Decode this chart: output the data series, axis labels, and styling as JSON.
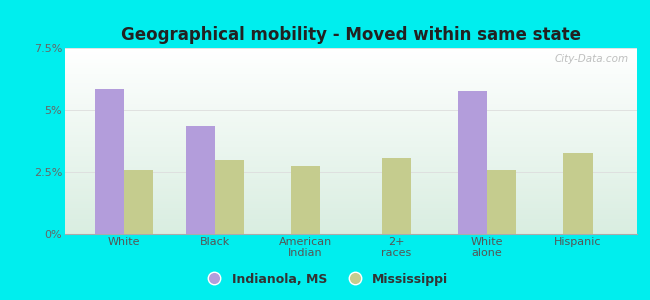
{
  "title": "Geographical mobility - Moved within same state",
  "categories": [
    "White",
    "Black",
    "American\nIndian",
    "2+\nraces",
    "White\nalone",
    "Hispanic"
  ],
  "indianola_values": [
    5.85,
    4.35,
    0,
    0,
    5.75,
    0
  ],
  "mississippi_values": [
    2.6,
    3.0,
    2.75,
    3.05,
    2.6,
    3.25
  ],
  "bar_color_indianola": "#b39ddb",
  "bar_color_mississippi": "#c5cc8e",
  "background_color": "#00eeee",
  "ylim": [
    0,
    7.5
  ],
  "yticks": [
    0,
    2.5,
    5.0,
    7.5
  ],
  "ytick_labels": [
    "0%",
    "2.5%",
    "5%",
    "7.5%"
  ],
  "legend_labels": [
    "Indianola, MS",
    "Mississippi"
  ],
  "bar_width": 0.32,
  "watermark": "City-Data.com"
}
